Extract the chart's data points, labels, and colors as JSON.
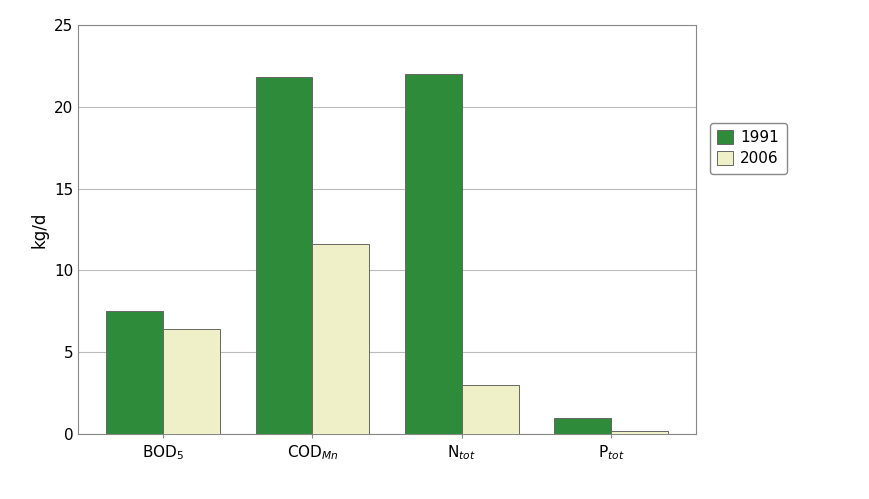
{
  "values_1991": [
    7.5,
    21.8,
    22.0,
    1.0
  ],
  "values_2006": [
    6.4,
    11.6,
    3.0,
    0.2
  ],
  "color_1991": "#2e8b3a",
  "color_2006": "#efefc8",
  "ylabel": "kg/d",
  "ylim": [
    0,
    25
  ],
  "yticks": [
    0,
    5,
    10,
    15,
    20,
    25
  ],
  "legend_labels": [
    "1991",
    "2006"
  ],
  "bar_width": 0.38,
  "edge_color": "#666666",
  "background_color": "#ffffff",
  "grid_color": "#bbbbbb",
  "spine_color": "#888888",
  "tick_fontsize": 11,
  "label_fontsize": 12
}
